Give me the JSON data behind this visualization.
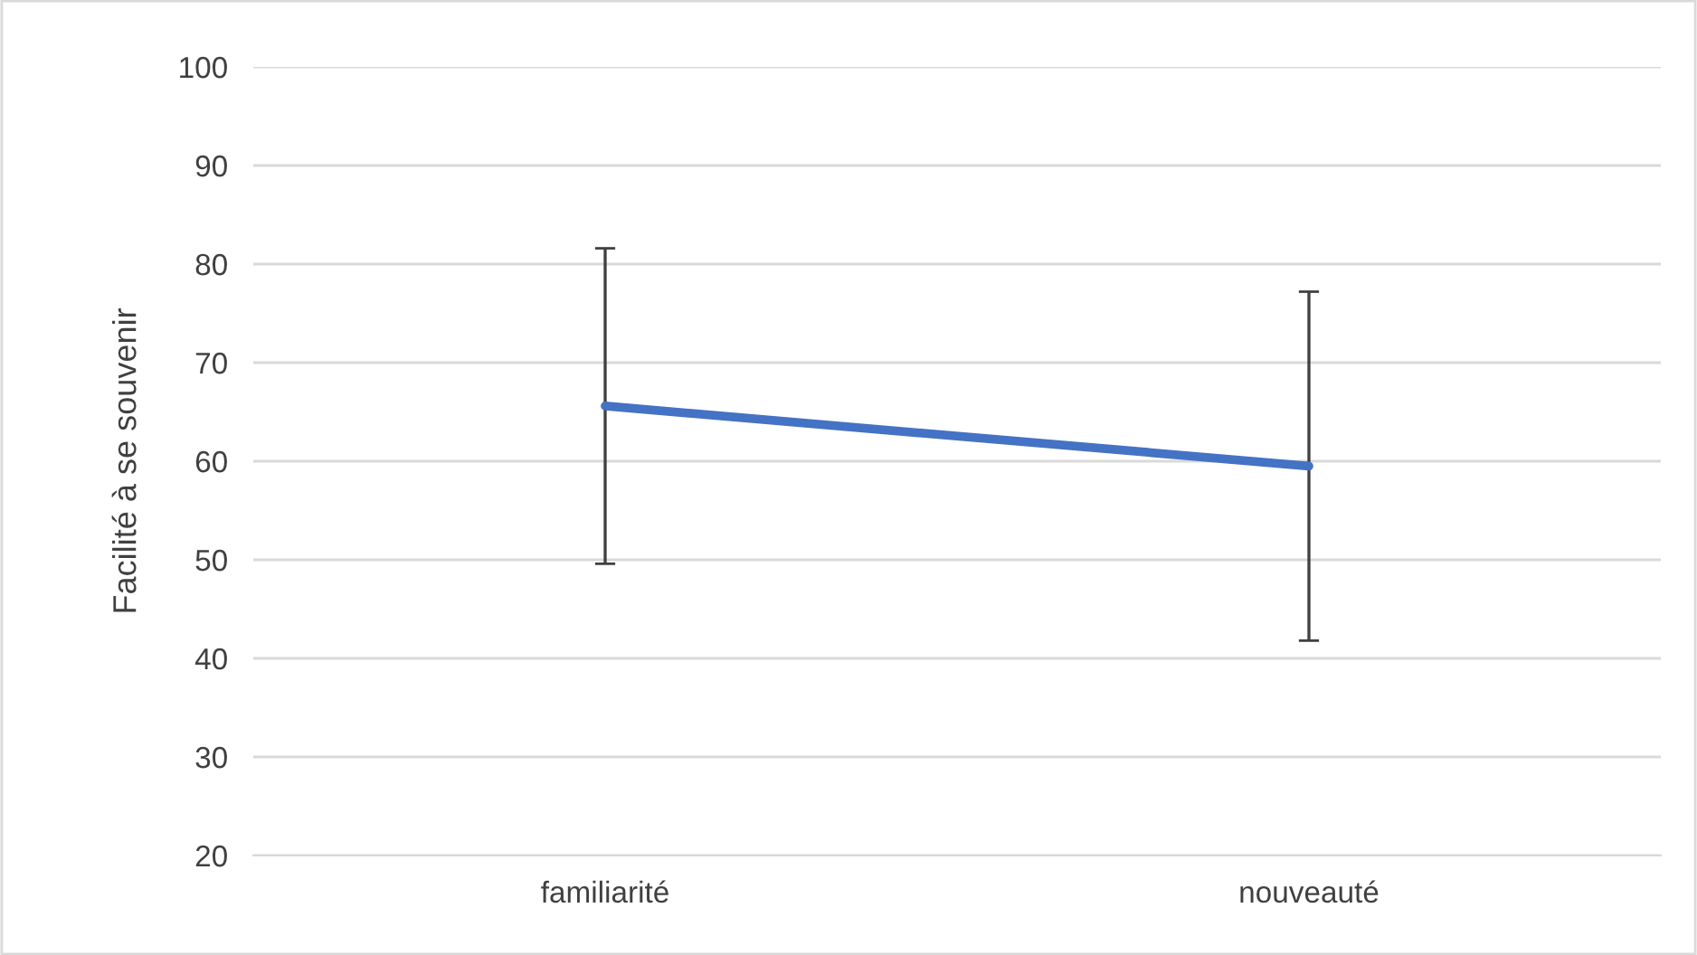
{
  "chart_data": {
    "type": "line",
    "ylabel": "Facilité à se souvenir",
    "categories": [
      "familiarité",
      "nouveauté"
    ],
    "series": [
      {
        "color": "#4472c4",
        "values": [
          65.6,
          59.5
        ],
        "errors": [
          16.0,
          17.7
        ]
      }
    ],
    "ylim": [
      20,
      100
    ],
    "yticks": [
      20,
      30,
      40,
      50,
      60,
      70,
      80,
      90,
      100
    ],
    "grid": "y",
    "marker": "none",
    "line_style": "solid"
  }
}
